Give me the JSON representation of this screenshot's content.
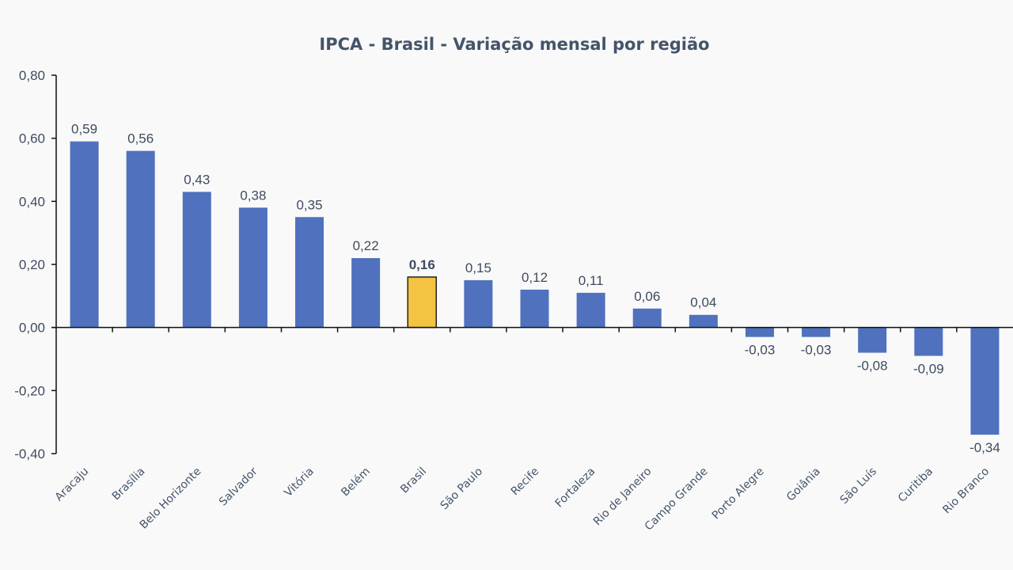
{
  "chart_data": {
    "type": "bar",
    "title": "IPCA - Brasil - Variação mensal por região",
    "xlabel": "",
    "ylabel": "",
    "categories": [
      "Aracaju",
      "Brasília",
      "Belo Horizonte",
      "Salvador",
      "Vitória",
      "Belém",
      "Brasil",
      "São Paulo",
      "Recife",
      "Fortaleza",
      "Rio de Janeiro",
      "Campo Grande",
      "Porto Alegre",
      "Goiânia",
      "São Luís",
      "Curitiba",
      "Rio Branco"
    ],
    "values": [
      0.59,
      0.56,
      0.43,
      0.38,
      0.35,
      0.22,
      0.16,
      0.15,
      0.12,
      0.11,
      0.06,
      0.04,
      -0.03,
      -0.03,
      -0.08,
      -0.09,
      -0.34
    ],
    "data_labels": [
      "0,59",
      "0,56",
      "0,43",
      "0,38",
      "0,35",
      "0,22",
      "0,16",
      "0,15",
      "0,12",
      "0,11",
      "0,06",
      "0,04",
      "-0,03",
      "-0,03",
      "-0,08",
      "-0,09",
      "-0,34"
    ],
    "highlight_category": "Brasil",
    "ylim": [
      -0.4,
      0.8
    ],
    "yticks": [
      0.8,
      0.6,
      0.4,
      0.2,
      0.0,
      -0.2,
      -0.4
    ],
    "ytick_labels": [
      "0,80",
      "0,60",
      "0,40",
      "0,20",
      "0,00",
      "-0,20",
      "-0,40"
    ],
    "grid": false,
    "legend": "none",
    "colors": {
      "bar": "#4f71be",
      "highlight": "#f5c342",
      "highlight_border": "#222222",
      "axis": "#111111",
      "text": "#44546a",
      "background": "#f9f9f9"
    }
  }
}
